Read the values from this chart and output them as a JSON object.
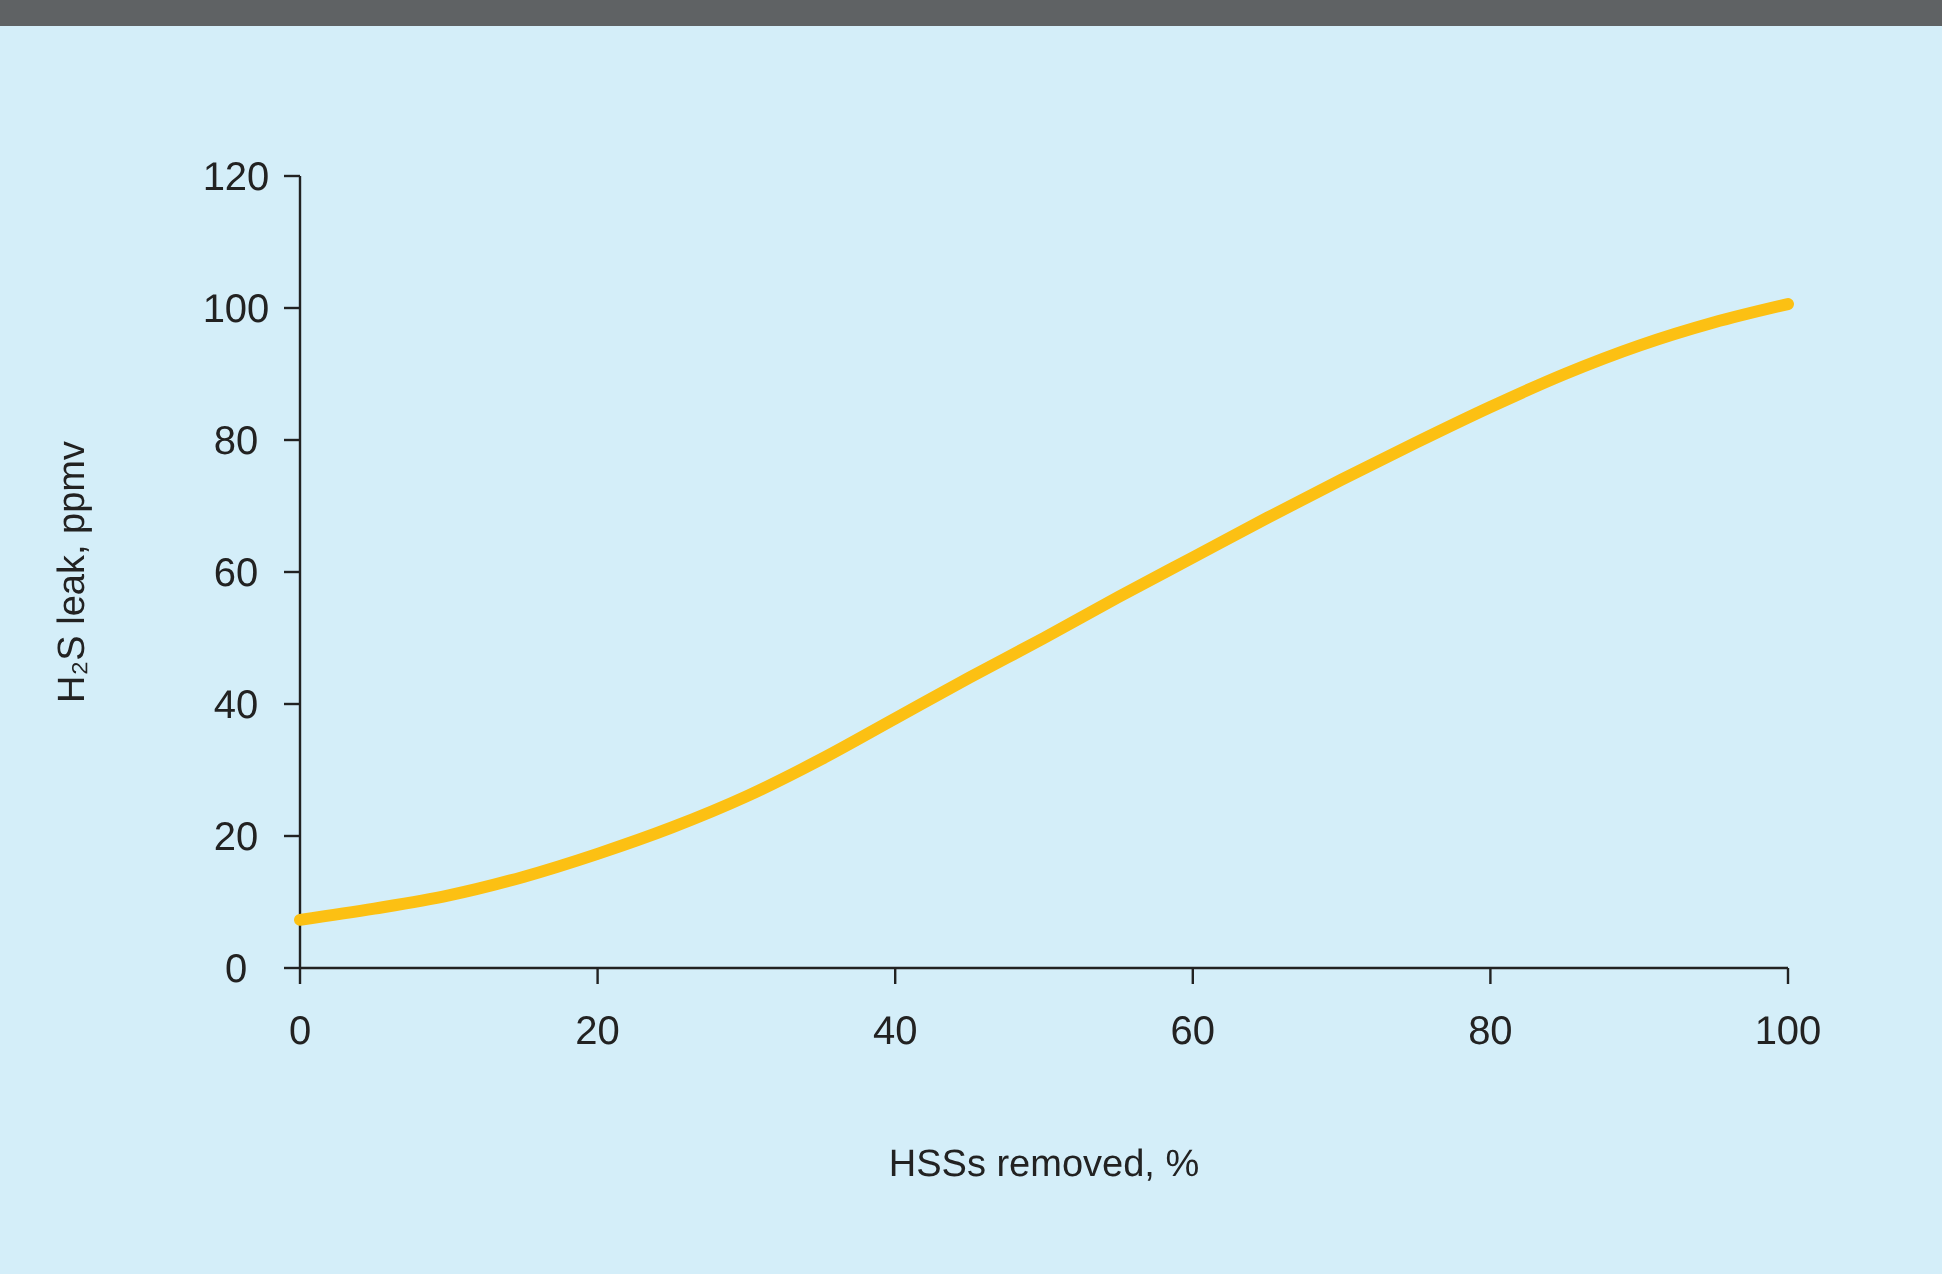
{
  "chart_data": {
    "type": "line",
    "xlabel": "HSSs removed, %",
    "ylabel": "H₂S leak, ppmv",
    "x": [
      0,
      5,
      10,
      15,
      20,
      25,
      30,
      35,
      40,
      45,
      50,
      55,
      60,
      65,
      70,
      75,
      80,
      85,
      90,
      95,
      100
    ],
    "series": [
      {
        "color": "#fcc013",
        "values": [
          7.3,
          9,
          11,
          13.8,
          17.3,
          21.3,
          26,
          31.6,
          37.8,
          44,
          50,
          56.2,
          62.2,
          68.2,
          74,
          79.6,
          85,
          90,
          94.3,
          97.8,
          100.6
        ]
      }
    ],
    "xlim": [
      0,
      100
    ],
    "xticks": [
      0,
      20,
      40,
      60,
      80,
      100
    ],
    "ylim": [
      0,
      120
    ],
    "yticks": [
      0,
      20,
      40,
      60,
      80,
      100,
      120
    ],
    "grid": false,
    "marker": "none",
    "line_style": "solid"
  }
}
